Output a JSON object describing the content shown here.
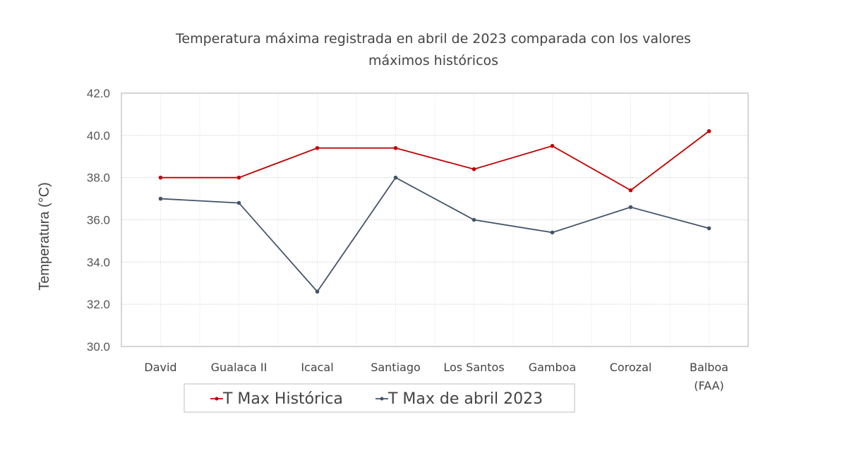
{
  "chart_data": {
    "type": "line",
    "title": [
      "Temperatura máxima registrada en abril de 2023 comparada con los valores",
      "máximos históricos"
    ],
    "xlabel": "",
    "ylabel": "Temperatura (°C)",
    "ylim": [
      30.0,
      42.0
    ],
    "yticks": [
      "30.0",
      "32.0",
      "34.0",
      "36.0",
      "38.0",
      "40.0",
      "42.0"
    ],
    "grid": true,
    "categories": [
      [
        "David"
      ],
      [
        "Gualaca II"
      ],
      [
        "Icacal"
      ],
      [
        "Santiago"
      ],
      [
        "Los Santos"
      ],
      [
        "Gamboa"
      ],
      [
        "Corozal"
      ],
      [
        "Balboa",
        "(FAA)"
      ]
    ],
    "series": [
      {
        "name": "T Max Histórica",
        "color": "#c00000",
        "values": [
          38.0,
          38.0,
          39.4,
          39.4,
          38.4,
          39.5,
          37.4,
          40.2
        ]
      },
      {
        "name": "T Max de abril 2023",
        "color": "#44546a",
        "values": [
          37.0,
          36.8,
          32.6,
          38.0,
          36.0,
          35.4,
          36.6,
          35.6
        ]
      }
    ],
    "legend_position": "bottom"
  }
}
